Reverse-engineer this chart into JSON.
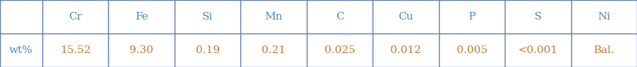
{
  "columns": [
    "",
    "Cr",
    "Fe",
    "Si",
    "Mn",
    "C",
    "Cu",
    "P",
    "S",
    "Ni"
  ],
  "row_label": "wt%",
  "values": [
    "15.52",
    "9.30",
    "0.19",
    "0.21",
    "0.025",
    "0.012",
    "0.005",
    "<0.001",
    "Bal."
  ],
  "header_color": "#4a86c8",
  "value_color": "#c87832",
  "label_color": "#4a86c8",
  "bg_color": "#ffffff",
  "border_color": "#5a7ab0",
  "font_size": 11,
  "fig_width": 9.01,
  "fig_height": 0.96
}
